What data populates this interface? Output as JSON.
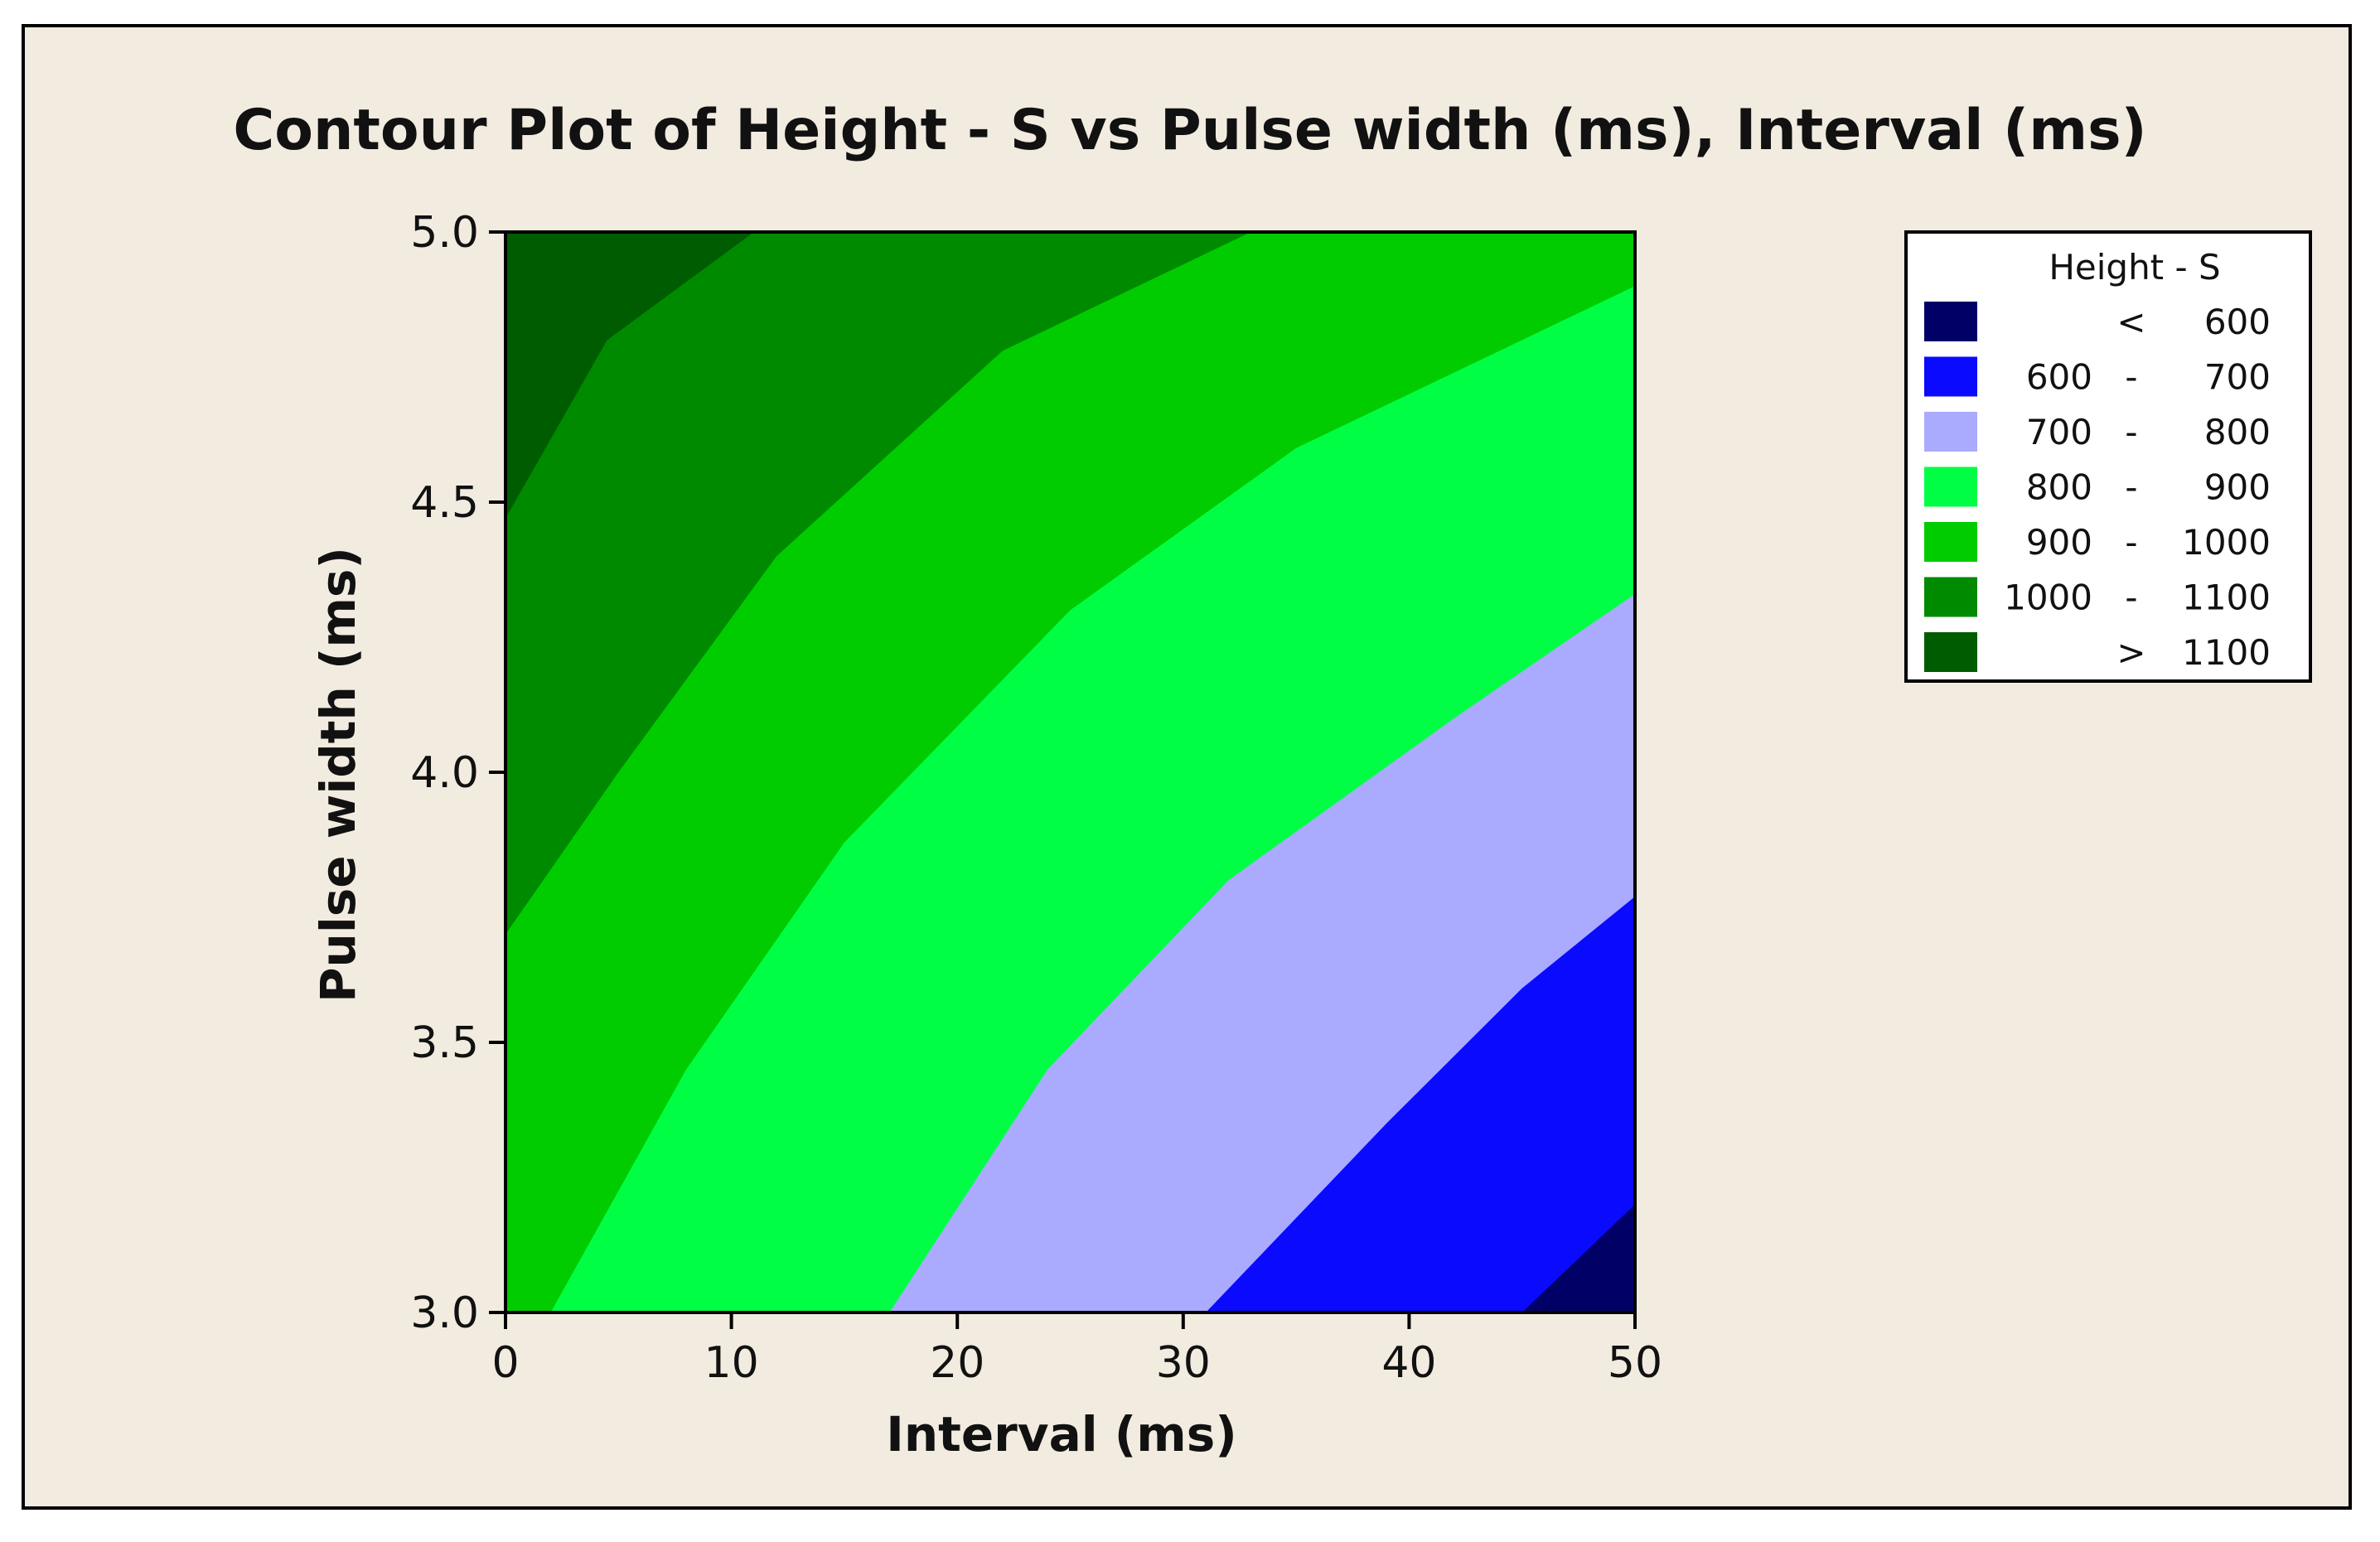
{
  "chart_data": {
    "type": "contour",
    "title": "Contour Plot of Height - S vs Pulse width (ms), Interval (ms)",
    "xlabel": "Interval (ms)",
    "ylabel": "Pulse width (ms)",
    "xlim": [
      0,
      50
    ],
    "ylim": [
      3.0,
      5.0
    ],
    "x_ticks": [
      "0",
      "10",
      "20",
      "30",
      "40",
      "50"
    ],
    "y_ticks": [
      "3.0",
      "3.5",
      "4.0",
      "4.5",
      "5.0"
    ],
    "legend": {
      "title": "Height - S",
      "placement": "right",
      "entries": [
        {
          "low": "",
          "sep": "<",
          "high": "600",
          "color": "#000066"
        },
        {
          "low": "600",
          "sep": "-",
          "high": "700",
          "color": "#0a0aff"
        },
        {
          "low": "700",
          "sep": "-",
          "high": "800",
          "color": "#aaaaff"
        },
        {
          "low": "800",
          "sep": "-",
          "high": "900",
          "color": "#00ff44"
        },
        {
          "low": "900",
          "sep": "-",
          "high": "1000",
          "color": "#00cc00"
        },
        {
          "low": "1000",
          "sep": "-",
          "high": "1100",
          "color": "#008a00"
        },
        {
          "low": "",
          "sep": ">",
          "high": "1100",
          "color": "#005c00"
        }
      ]
    },
    "contours": [
      {
        "level": 1100,
        "points": [
          [
            0,
            4.47
          ],
          [
            4.5,
            4.8
          ],
          [
            11,
            5.0
          ]
        ]
      },
      {
        "level": 1000,
        "points": [
          [
            0,
            3.7
          ],
          [
            5,
            4.0
          ],
          [
            12,
            4.4
          ],
          [
            22,
            4.78
          ],
          [
            33,
            5.0
          ]
        ]
      },
      {
        "level": 900,
        "points": [
          [
            2,
            3.0
          ],
          [
            8,
            3.45
          ],
          [
            15,
            3.87
          ],
          [
            25,
            4.3
          ],
          [
            35,
            4.6
          ],
          [
            50,
            4.9
          ]
        ]
      },
      {
        "level": 800,
        "points": [
          [
            17,
            3.0
          ],
          [
            24,
            3.45
          ],
          [
            32,
            3.8
          ],
          [
            42,
            4.1
          ],
          [
            50,
            4.33
          ]
        ]
      },
      {
        "level": 700,
        "points": [
          [
            31,
            3.0
          ],
          [
            39,
            3.35
          ],
          [
            45,
            3.6
          ],
          [
            50,
            3.77
          ]
        ]
      },
      {
        "level": 600,
        "points": [
          [
            45,
            3.0
          ],
          [
            50,
            3.2
          ]
        ]
      }
    ]
  }
}
